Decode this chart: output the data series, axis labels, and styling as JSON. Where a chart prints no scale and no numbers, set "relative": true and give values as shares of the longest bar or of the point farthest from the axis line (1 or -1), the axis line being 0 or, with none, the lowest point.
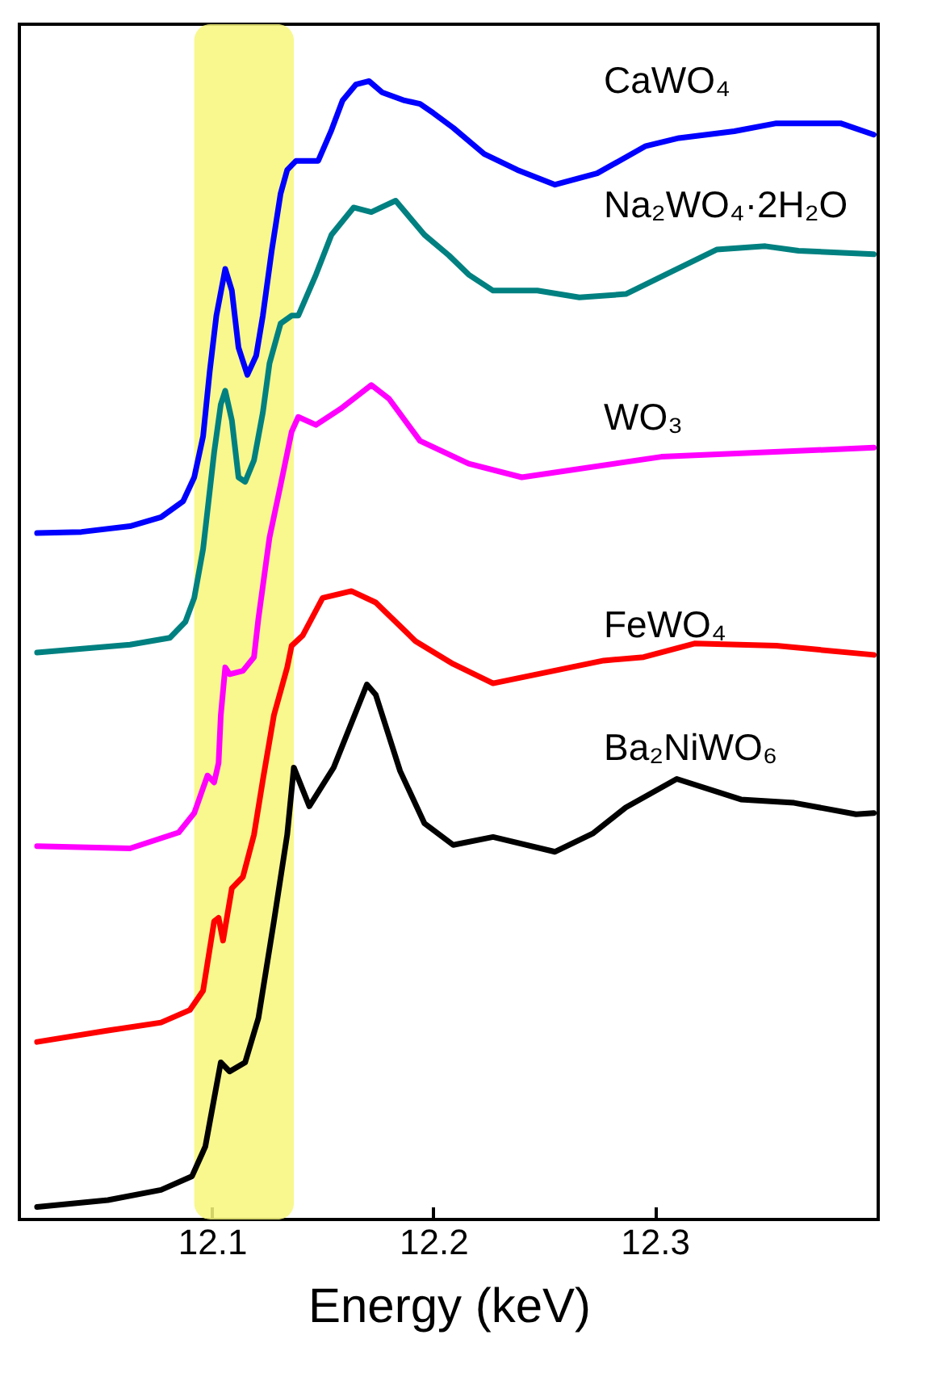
{
  "chart_data": {
    "type": "line",
    "xlabel": "Energy (keV)",
    "relative": true,
    "xlim": [
      12.013,
      12.401
    ],
    "xticks": [
      12.1,
      12.2,
      12.3
    ],
    "bands": [
      {
        "axis": "x",
        "from": 12.092,
        "to": 12.137,
        "color": "#f7f77a"
      }
    ],
    "series": [
      {
        "name": "CaWO₄",
        "color": "#0000ff",
        "x": [
          12.021,
          12.041,
          12.063,
          12.077,
          12.087,
          12.092,
          12.096,
          12.099,
          12.102,
          12.106,
          12.109,
          12.112,
          12.116,
          12.12,
          12.123,
          12.127,
          12.131,
          12.134,
          12.138,
          12.148,
          12.154,
          12.159,
          12.165,
          12.171,
          12.177,
          12.187,
          12.194,
          12.2,
          12.209,
          12.223,
          12.238,
          12.255,
          12.274,
          12.296,
          12.311,
          12.336,
          12.355,
          12.384,
          12.399
        ],
        "values": [
          0.603,
          0.604,
          0.609,
          0.617,
          0.631,
          0.652,
          0.688,
          0.745,
          0.794,
          0.835,
          0.816,
          0.766,
          0.742,
          0.759,
          0.794,
          0.851,
          0.901,
          0.922,
          0.93,
          0.93,
          0.957,
          0.983,
          0.997,
          1,
          0.99,
          0.983,
          0.98,
          0.972,
          0.959,
          0.936,
          0.922,
          0.909,
          0.919,
          0.943,
          0.95,
          0.956,
          0.963,
          0.963,
          0.953
        ]
      },
      {
        "name": "Na₂WO₄·2H₂O",
        "color": "#008080",
        "x": [
          12.021,
          12.063,
          12.081,
          12.088,
          12.092,
          12.096,
          12.101,
          12.104,
          12.106,
          12.109,
          12.112,
          12.115,
          12.119,
          12.123,
          12.126,
          12.131,
          12.136,
          12.139,
          12.147,
          12.154,
          12.164,
          12.172,
          12.183,
          12.196,
          12.207,
          12.216,
          12.227,
          12.247,
          12.266,
          12.287,
          12.308,
          12.328,
          12.35,
          12.365,
          12.399
        ],
        "values": [
          0.498,
          0.505,
          0.511,
          0.525,
          0.546,
          0.589,
          0.674,
          0.716,
          0.728,
          0.702,
          0.652,
          0.648,
          0.667,
          0.709,
          0.752,
          0.787,
          0.794,
          0.794,
          0.83,
          0.865,
          0.889,
          0.885,
          0.895,
          0.865,
          0.847,
          0.83,
          0.816,
          0.816,
          0.81,
          0.813,
          0.833,
          0.852,
          0.855,
          0.851,
          0.848
        ]
      },
      {
        "name": "WO₃",
        "color": "#ff00ff",
        "x": [
          12.021,
          12.063,
          12.085,
          12.092,
          12.098,
          12.101,
          12.103,
          12.104,
          12.106,
          12.108,
          12.114,
          12.119,
          12.121,
          12.126,
          12.131,
          12.136,
          12.139,
          12.147,
          12.158,
          12.172,
          12.18,
          12.194,
          12.216,
          12.24,
          12.303,
          12.399
        ],
        "values": [
          0.328,
          0.326,
          0.34,
          0.357,
          0.39,
          0.384,
          0.401,
          0.443,
          0.485,
          0.479,
          0.482,
          0.494,
          0.528,
          0.599,
          0.645,
          0.692,
          0.705,
          0.698,
          0.712,
          0.733,
          0.721,
          0.684,
          0.664,
          0.652,
          0.67,
          0.678
        ]
      },
      {
        "name": "FeWO₄",
        "color": "#ff0000",
        "x": [
          12.021,
          12.053,
          12.077,
          12.09,
          12.096,
          12.101,
          12.103,
          12.105,
          12.109,
          12.114,
          12.119,
          12.123,
          12.128,
          12.134,
          12.136,
          12.141,
          12.15,
          12.163,
          12.174,
          12.192,
          12.209,
          12.227,
          12.277,
          12.295,
          12.318,
          12.355,
          12.399
        ],
        "values": [
          0.156,
          0.166,
          0.173,
          0.184,
          0.201,
          0.262,
          0.265,
          0.245,
          0.291,
          0.301,
          0.338,
          0.386,
          0.443,
          0.485,
          0.504,
          0.513,
          0.546,
          0.552,
          0.542,
          0.508,
          0.488,
          0.471,
          0.491,
          0.494,
          0.506,
          0.504,
          0.496
        ]
      },
      {
        "name": "Ba₂NiWO₆",
        "color": "#000000",
        "x": [
          12.021,
          12.053,
          12.077,
          12.091,
          12.097,
          12.104,
          12.108,
          12.115,
          12.121,
          12.128,
          12.134,
          12.137,
          12.144,
          12.155,
          12.17,
          12.174,
          12.185,
          12.196,
          12.209,
          12.227,
          12.255,
          12.272,
          12.287,
          12.31,
          12.339,
          12.363,
          12.391,
          12.399
        ],
        "values": [
          0.011,
          0.017,
          0.026,
          0.038,
          0.064,
          0.138,
          0.13,
          0.138,
          0.177,
          0.262,
          0.338,
          0.397,
          0.363,
          0.397,
          0.47,
          0.461,
          0.394,
          0.348,
          0.329,
          0.336,
          0.323,
          0.339,
          0.362,
          0.387,
          0.369,
          0.366,
          0.356,
          0.357
        ]
      }
    ]
  }
}
